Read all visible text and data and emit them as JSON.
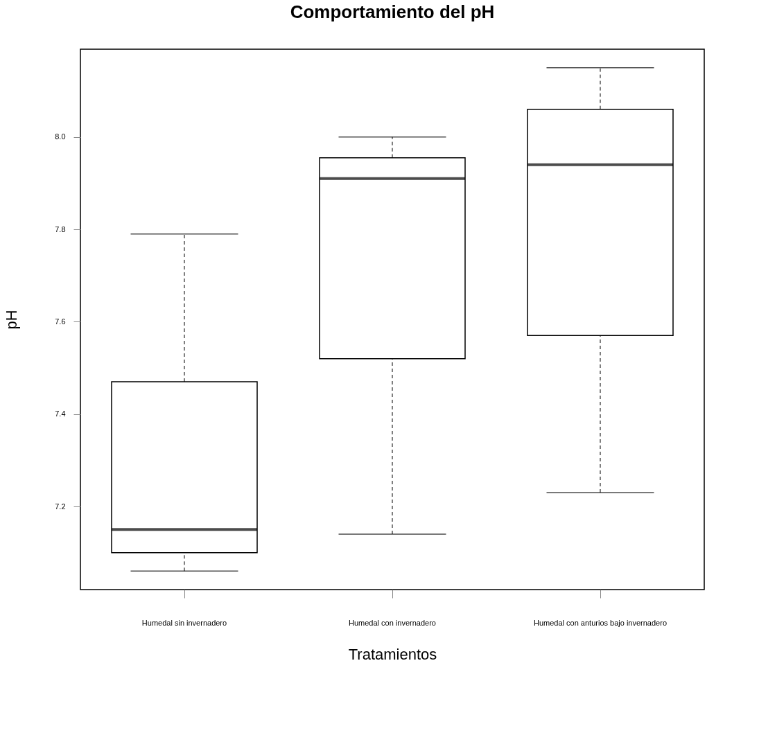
{
  "chart_data": {
    "type": "box",
    "title": "Comportamiento del pH",
    "xlabel": "Tratamientos",
    "ylabel": "pH",
    "categories": [
      "Humedal sin invernadero",
      "Humedal con invernadero",
      "Humedal con anturios bajo invernadero"
    ],
    "boxes": [
      {
        "low": 7.06,
        "q1": 7.1,
        "median": 7.15,
        "q3": 7.47,
        "high": 7.79
      },
      {
        "low": 7.14,
        "q1": 7.52,
        "median": 7.91,
        "q3": 7.955,
        "high": 8.0
      },
      {
        "low": 7.23,
        "q1": 7.57,
        "median": 7.94,
        "q3": 8.06,
        "high": 8.15
      }
    ],
    "ylim": [
      7.02,
      8.19
    ],
    "yticks": [
      7.2,
      7.4,
      7.6,
      7.8,
      {
        "value": 8,
        "label": "8.0"
      }
    ],
    "grid": false
  }
}
